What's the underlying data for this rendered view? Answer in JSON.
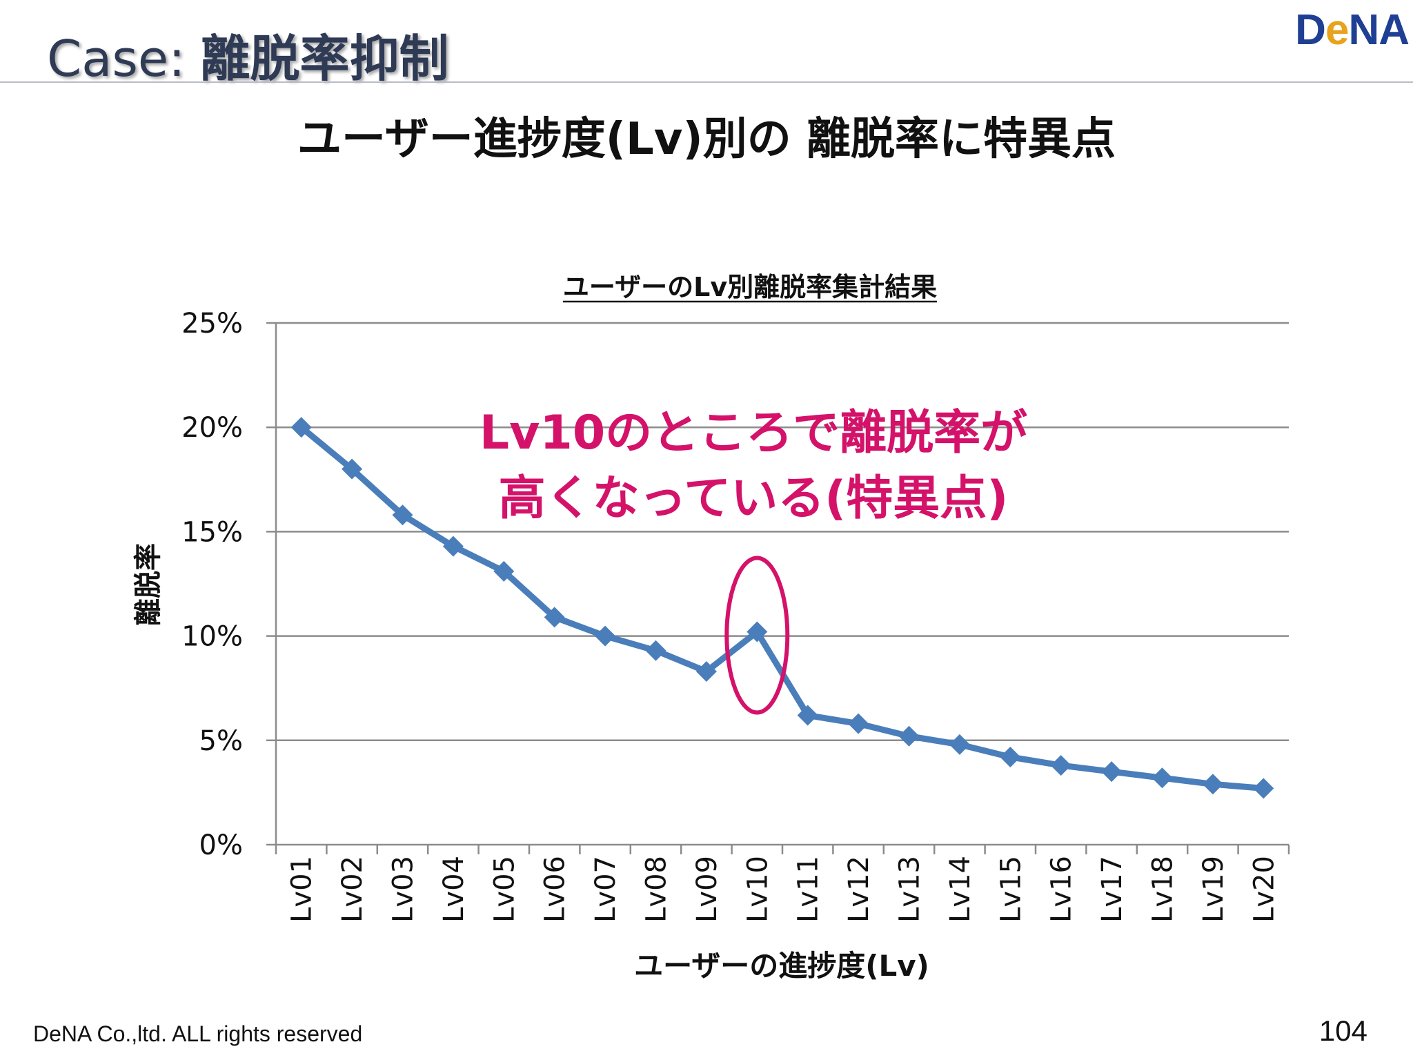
{
  "header": {
    "case_label": "Case:",
    "case_topic": "離脱率抑制",
    "brand_prefix": "D",
    "brand_accent": "e",
    "brand_suffix": "NA"
  },
  "headline": "ユーザー進捗度(Lv)別の 離脱率に特異点",
  "chart_data": {
    "type": "line",
    "title": "ユーザーのLv別離脱率集計結果",
    "xlabel": "ユーザーの進捗度(Lv)",
    "ylabel": "離脱率",
    "ylim": [
      0,
      25
    ],
    "y_ticks": [
      "0%",
      "5%",
      "10%",
      "15%",
      "20%",
      "25%"
    ],
    "grid": true,
    "categories": [
      "Lv01",
      "Lv02",
      "Lv03",
      "Lv04",
      "Lv05",
      "Lv06",
      "Lv07",
      "Lv08",
      "Lv09",
      "Lv10",
      "Lv11",
      "Lv12",
      "Lv13",
      "Lv14",
      "Lv15",
      "Lv16",
      "Lv17",
      "Lv18",
      "Lv19",
      "Lv20"
    ],
    "series": [
      {
        "values": [
          20.0,
          18.0,
          15.8,
          14.3,
          13.1,
          10.9,
          10.0,
          9.3,
          8.3,
          10.2,
          6.2,
          5.8,
          5.2,
          4.8,
          4.2,
          3.8,
          3.5,
          3.2,
          2.9,
          2.7
        ],
        "color": "#4a7ebb"
      }
    ],
    "annotation": {
      "line1": "Lv10のところで離脱率が",
      "line2": "高くなっている(特異点)",
      "color": "#d4126a",
      "highlight_category": "Lv10"
    }
  },
  "footer": {
    "copyright": "DeNA Co.,ltd. ALL rights reserved",
    "page_number": "104"
  }
}
